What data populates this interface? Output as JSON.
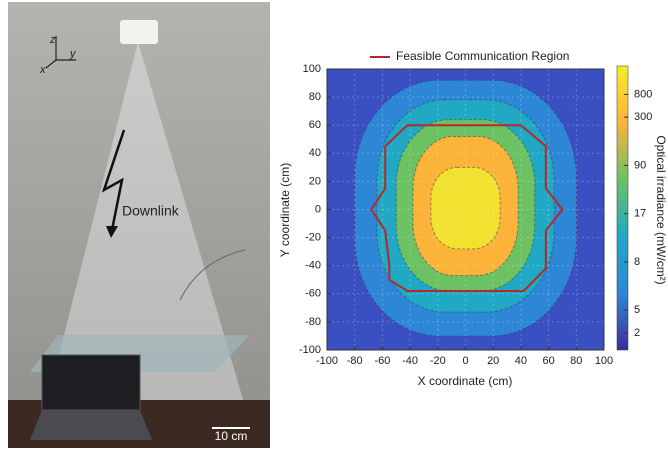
{
  "photo": {
    "labels": [
      "z",
      "x",
      "y",
      "Downlink",
      "10 cm"
    ]
  },
  "chart_data": {
    "type": "contour",
    "legend": "Feasible Communication Region",
    "xlabel": "X coordinate (cm)",
    "ylabel": "Y coordinate (cm)",
    "colorbar_label": "Optical irradiance (mW/cm²)",
    "xlim": [
      -100,
      100
    ],
    "ylim": [
      -100,
      100
    ],
    "xticks": [
      -100,
      -80,
      -60,
      -40,
      -20,
      0,
      20,
      40,
      60,
      80,
      100
    ],
    "yticks": [
      -100,
      -80,
      -60,
      -40,
      -20,
      0,
      20,
      40,
      60,
      80,
      100
    ],
    "grid": true,
    "background_color": "#3a4fc2",
    "bands": [
      {
        "color": "#2e87d6",
        "extent": [
          -80,
          80,
          -90,
          92
        ]
      },
      {
        "color": "#21a8c4",
        "extent": [
          -64,
          64,
          -73,
          78
        ]
      },
      {
        "color": "#6cc163",
        "extent": [
          -50,
          50,
          -58,
          64
        ]
      },
      {
        "color": "#fbb33a",
        "extent": [
          -38,
          38,
          -47,
          52
        ]
      },
      {
        "color": "#f3e12f",
        "extent": [
          -25,
          25,
          -28,
          30
        ]
      }
    ],
    "colorbar_ticks": [
      800,
      300,
      90,
      17,
      8,
      5,
      2
    ],
    "colorbar_colors": [
      "#f7ec2a",
      "#fbb33a",
      "#6cc163",
      "#21a8c4",
      "#2e87d6",
      "#3b2e99"
    ],
    "region": {
      "color": "#b22a2a",
      "x": [
        -40,
        40,
        58,
        58,
        70,
        58,
        58,
        42,
        -42,
        -55,
        -55,
        -58,
        -68,
        -58,
        -58,
        -42
      ],
      "y": [
        60,
        60,
        45,
        15,
        0,
        -15,
        -42,
        -58,
        -58,
        -50,
        -40,
        -15,
        0,
        15,
        45,
        60
      ]
    }
  }
}
